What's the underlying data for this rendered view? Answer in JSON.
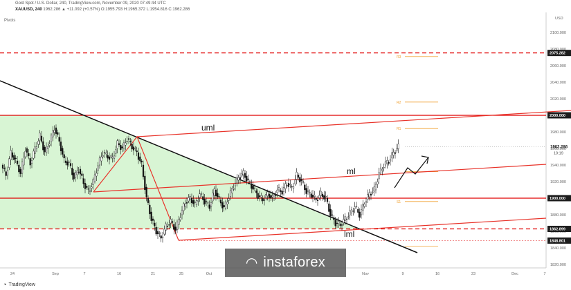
{
  "header": {
    "source_line": "Gold Spot / U.S. Dollar, 240, TradingView.com, November 09, 2020 07:49:44 UTC",
    "symbol": "XAUUSD, 240",
    "ohlc": "1962.286 ▲ +11.092 (+0.57%) O:1955.793 H:1965.372 L:1954.816 C:1962.286",
    "indicator": "Pivots"
  },
  "branding": {
    "tradingview": "TradingView",
    "watermark": "instaforex"
  },
  "colors": {
    "support_resistance": "#e00000",
    "channel": "#e8332a",
    "trendline": "#111111",
    "green_zone": "#d8f5d4",
    "candles": "#111111",
    "pivot": "#f0a030",
    "price_tag_bg": "#1c1c1c"
  },
  "chart_data": {
    "type": "candlestick",
    "currency": "USD",
    "y_ticks": [
      2100,
      2080,
      2060,
      2040,
      2020,
      2000,
      1980,
      1960,
      1940,
      1920,
      1900,
      1880,
      1860,
      1840,
      1820
    ],
    "y_tick_labels": [
      "2100.000",
      "2080.000",
      "2060.000",
      "2040.000",
      "2020.000",
      "2000.000",
      "1980.000",
      "1960.000",
      "1940.000",
      "1920.000",
      "1900.000",
      "1880.000",
      "1860.000",
      "1840.000",
      "1820.000"
    ],
    "x_ticks": [
      "24",
      "Sep",
      "7",
      "16",
      "21",
      "25",
      "Oct",
      "Nov",
      "9",
      "16",
      "23",
      "Dec",
      "7"
    ],
    "current_price": {
      "label": "1962.286",
      "value": 1962.286,
      "countdown": "10:19"
    },
    "horizontal_levels": [
      {
        "value": 2075.282,
        "label": "2075.282",
        "style": "dashed"
      },
      {
        "value": 2000.0,
        "label": "2000.000",
        "style": "solid"
      },
      {
        "value": 1900.0,
        "label": "1900.000",
        "style": "solid"
      },
      {
        "value": 1862.899,
        "label": "1862.899",
        "style": "dashed"
      },
      {
        "value": 1848.801,
        "label": "1848.801",
        "style": "dotted"
      }
    ],
    "pivots": [
      {
        "name": "R3",
        "value": 2071
      },
      {
        "name": "R2",
        "value": 2016
      },
      {
        "name": "R1",
        "value": 1984
      },
      {
        "name": "S1",
        "value": 1896
      }
    ],
    "annotations": [
      "uml",
      "ml",
      "lml"
    ],
    "price_path": [
      1940,
      1928,
      1955,
      1945,
      1930,
      1960,
      1942,
      1960,
      1975,
      1955,
      1968,
      1985,
      1968,
      1945,
      1942,
      1925,
      1935,
      1918,
      1908,
      1920,
      1940,
      1955,
      1950,
      1948,
      1966,
      1960,
      1972,
      1962,
      1955,
      1940,
      1900,
      1875,
      1860,
      1852,
      1866,
      1872,
      1862,
      1880,
      1895,
      1900,
      1892,
      1905,
      1896,
      1890,
      1910,
      1898,
      1888,
      1902,
      1915,
      1925,
      1930,
      1920,
      1912,
      1903,
      1898,
      1905,
      1900,
      1910,
      1908,
      1918,
      1912,
      1928,
      1920,
      1908,
      1904,
      1898,
      1905,
      1900,
      1880,
      1870,
      1868,
      1875,
      1882,
      1890,
      1880,
      1895,
      1905,
      1910,
      1930,
      1940,
      1945,
      1955,
      1962
    ]
  }
}
